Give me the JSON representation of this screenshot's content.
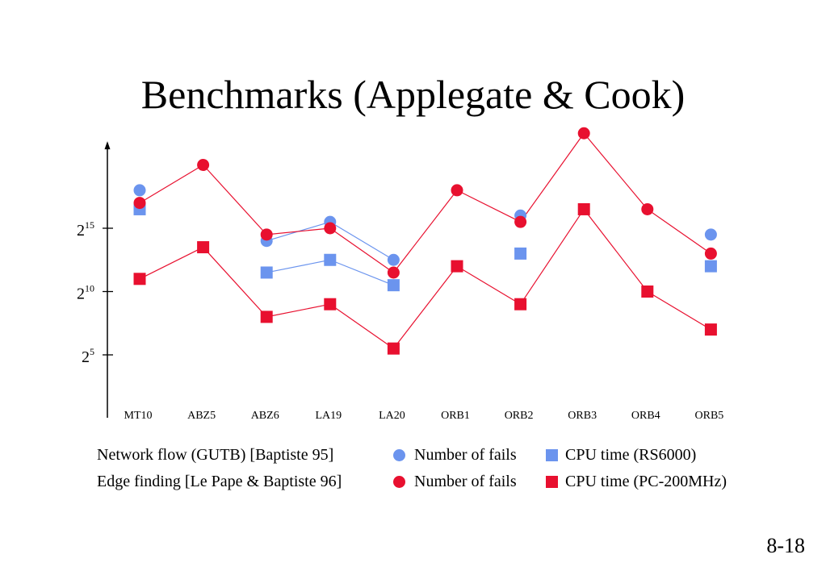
{
  "title": "Benchmarks (Applegate & Cook)",
  "page_number": "8-18",
  "colors": {
    "gutb": "#6b94ee",
    "edge": "#e8102f",
    "axis": "#000000"
  },
  "legend": {
    "rows": [
      {
        "label": "Network flow (GUTB) [Baptiste 95]",
        "fails_label": "Number of fails",
        "cpu_label": "CPU time (RS6000)"
      },
      {
        "label": "Edge finding [Le Pape & Baptiste 96]",
        "fails_label": "Number of fails",
        "cpu_label": "CPU time (PC-200MHz)"
      }
    ]
  },
  "chart_data": {
    "type": "line",
    "y_scale": "log2",
    "y_ticks": [
      {
        "base": "2",
        "exp": "15",
        "value": 15
      },
      {
        "base": "2",
        "exp": "10",
        "value": 10
      },
      {
        "base": "2",
        "exp": "5",
        "value": 5
      }
    ],
    "ylim": [
      2.3,
      22
    ],
    "categories": [
      "MT10",
      "ABZ5",
      "ABZ6",
      "LA19",
      "LA20",
      "ORB1",
      "ORB2",
      "ORB3",
      "ORB4",
      "ORB5"
    ],
    "series": [
      {
        "legend_row": 0,
        "marker": "circle",
        "color_key": "gutb",
        "values": [
          18,
          null,
          14,
          15.5,
          12.5,
          null,
          16,
          null,
          null,
          14.5
        ]
      },
      {
        "legend_row": 0,
        "marker": "square",
        "color_key": "gutb",
        "values": [
          16.5,
          null,
          11.5,
          12.5,
          10.5,
          null,
          13,
          null,
          null,
          12
        ]
      },
      {
        "legend_row": 1,
        "marker": "circle",
        "color_key": "edge",
        "values": [
          17,
          20,
          14.5,
          15,
          11.5,
          18,
          15.5,
          22.5,
          16.5,
          13
        ]
      },
      {
        "legend_row": 1,
        "marker": "square",
        "color_key": "edge",
        "values": [
          11,
          13.5,
          8,
          9,
          5.5,
          12,
          9,
          16.5,
          10,
          7
        ]
      }
    ]
  }
}
